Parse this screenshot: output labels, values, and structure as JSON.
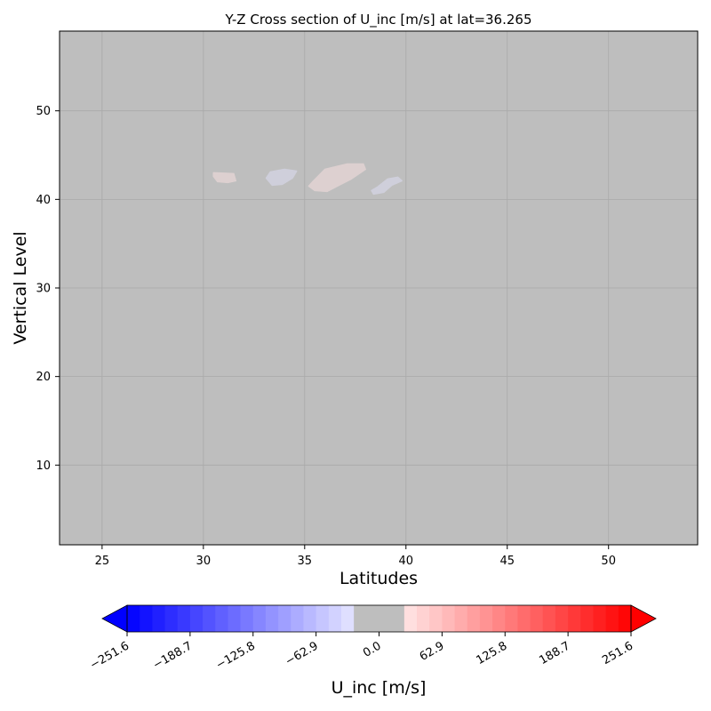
{
  "chart_data": {
    "type": "heatmap",
    "title": "Y-Z Cross section of U_inc [m/s]  at lat=36.265",
    "xlabel": "Latitudes",
    "ylabel": "Vertical Level",
    "xlim": [
      22.9,
      54.4
    ],
    "ylim": [
      1,
      59
    ],
    "xticks": [
      25,
      30,
      35,
      40,
      45,
      50
    ],
    "yticks": [
      10,
      20,
      30,
      40,
      50
    ],
    "grid": true,
    "background_color": "#bebebe",
    "features": [
      {
        "label": "weak positive (red) patch",
        "sign": "positive",
        "color": "#ddd0d0",
        "outline": [
          [
            30.5,
            43
          ],
          [
            31.5,
            42.9
          ],
          [
            31.6,
            42.1
          ],
          [
            31.2,
            41.9
          ],
          [
            30.7,
            42.0
          ],
          [
            30.5,
            42.6
          ]
        ]
      },
      {
        "label": "weak negative (blue) patch",
        "sign": "negative",
        "color": "#cfcfdb",
        "outline": [
          [
            33.3,
            43.1
          ],
          [
            34.0,
            43.4
          ],
          [
            34.6,
            43.2
          ],
          [
            34.4,
            42.4
          ],
          [
            33.9,
            41.7
          ],
          [
            33.4,
            41.6
          ],
          [
            33.1,
            42.4
          ]
        ]
      },
      {
        "label": "weak positive (red) patch",
        "sign": "positive",
        "color": "#ddd0d0",
        "outline": [
          [
            35.4,
            42.0
          ],
          [
            36.0,
            43.4
          ],
          [
            37.1,
            44.0
          ],
          [
            37.9,
            44.0
          ],
          [
            38.0,
            43.4
          ],
          [
            37.3,
            42.3
          ],
          [
            36.1,
            40.9
          ],
          [
            35.5,
            41.0
          ],
          [
            35.2,
            41.5
          ]
        ]
      },
      {
        "label": "weak negative (blue) patch",
        "sign": "negative",
        "color": "#cfcfdb",
        "outline": [
          [
            38.6,
            41.4
          ],
          [
            39.1,
            42.3
          ],
          [
            39.6,
            42.5
          ],
          [
            39.8,
            42.1
          ],
          [
            39.3,
            41.6
          ],
          [
            38.9,
            40.8
          ],
          [
            38.4,
            40.6
          ],
          [
            38.3,
            41.0
          ]
        ]
      }
    ],
    "colorbar": {
      "label": "U_inc [m/s]",
      "min": -251.6,
      "max": 251.6,
      "ticks": [
        "−251.6",
        "−188.7",
        "−125.8",
        "−62.9",
        "0.0",
        "62.9",
        "125.8",
        "188.7",
        "251.6"
      ],
      "extend": "both",
      "levels": 40,
      "neutral_color": "#bebebe",
      "cmap": "bwr"
    }
  }
}
